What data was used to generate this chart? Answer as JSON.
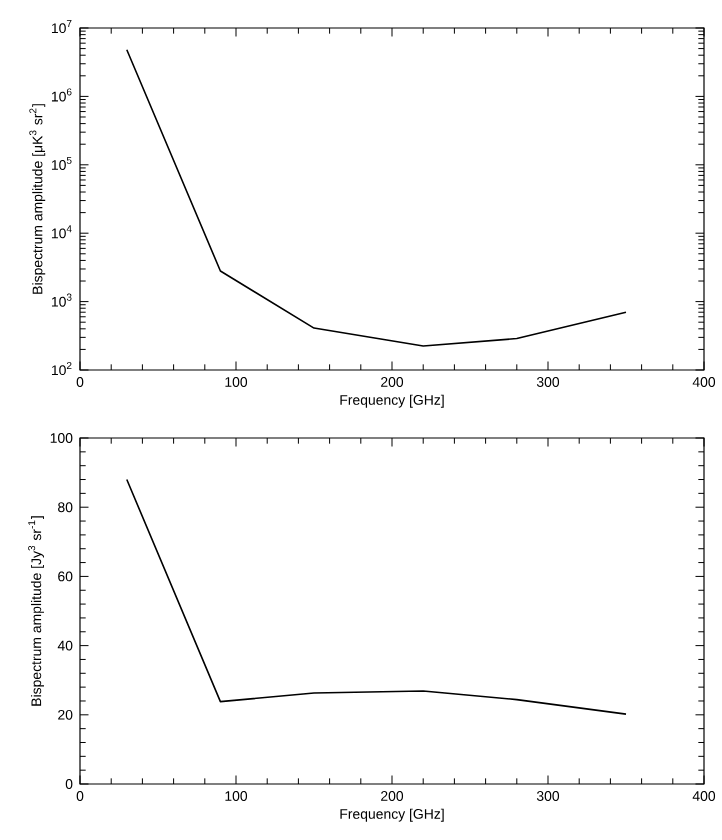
{
  "chart_data": [
    {
      "type": "line",
      "xlabel": "Frequency [GHz]",
      "ylabel": "Bispectrum amplitude [μK$^{3}$ sr$^{2}$]",
      "log": "y",
      "x": [
        30,
        90,
        150,
        220,
        280,
        350
      ],
      "series": [
        {
          "color": "#000000",
          "values": [
            4800000,
            2800,
            410,
            224,
            288,
            700
          ]
        }
      ],
      "xlim": [
        0,
        400
      ],
      "xticks": [
        0,
        100,
        200,
        300,
        400
      ],
      "ylim": [
        100,
        10000000
      ],
      "yticks": [
        {
          "value": 100,
          "label": "10$^{2}$"
        },
        {
          "value": 1000,
          "label": "10$^{3}$"
        },
        {
          "value": 10000,
          "label": "10$^{4}$"
        },
        {
          "value": 100000,
          "label": "10$^{5}$"
        },
        {
          "value": 1000000,
          "label": "10$^{6}$"
        },
        {
          "value": 10000000,
          "label": "10$^{7}$"
        }
      ],
      "grid": false,
      "marker": "none",
      "line_style": "solid"
    },
    {
      "type": "line",
      "xlabel": "Frequency [GHz]",
      "ylabel": "Bispectrum amplitude [Jy$^{3}$ sr$^{-1}$]",
      "x": [
        30,
        90,
        150,
        220,
        280,
        350
      ],
      "series": [
        {
          "color": "#000000",
          "values": [
            88,
            23.8,
            26.3,
            26.9,
            24.4,
            20.2
          ]
        }
      ],
      "xlim": [
        0,
        400
      ],
      "xticks": [
        0,
        100,
        200,
        300,
        400
      ],
      "ylim": [
        0,
        100
      ],
      "yticks": [
        0,
        20,
        40,
        60,
        80,
        100
      ],
      "grid": false,
      "marker": "none",
      "line_style": "solid"
    }
  ]
}
